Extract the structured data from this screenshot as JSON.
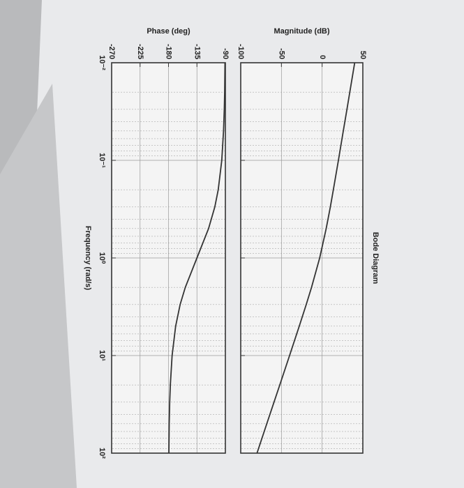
{
  "chart_data": [
    {
      "type": "line",
      "title": "Bode Diagram",
      "ylabel": "Magnitude (dB)",
      "x": [
        0.01,
        0.02,
        0.03,
        0.05,
        0.1,
        0.2,
        0.3,
        0.5,
        1,
        2,
        3,
        5,
        10,
        20,
        30,
        50,
        100
      ],
      "values": [
        40,
        34,
        30.5,
        26,
        20,
        13.8,
        10.1,
        5,
        -3,
        -13,
        -19.5,
        -28.1,
        -40,
        -52,
        -59.1,
        -68,
        -80
      ],
      "xlim": [
        0.01,
        100
      ],
      "xticks": [
        0.01,
        0.1,
        1,
        10,
        100
      ],
      "log_x": true,
      "ylim": [
        -100,
        50
      ],
      "yticks": [
        -100,
        -50,
        0,
        50
      ],
      "grid": true,
      "color": "#333333"
    },
    {
      "type": "line",
      "ylabel": "Phase (deg)",
      "xlabel": "Frequency  (rad/s)",
      "x": [
        0.01,
        0.02,
        0.03,
        0.05,
        0.1,
        0.2,
        0.3,
        0.5,
        1,
        2,
        3,
        5,
        10,
        20,
        30,
        50,
        100
      ],
      "values": [
        -90.6,
        -91.1,
        -91.7,
        -92.9,
        -95.7,
        -101.3,
        -106.7,
        -116.6,
        -135,
        -153.4,
        -161.6,
        -168.7,
        -174.3,
        -177.1,
        -178.1,
        -178.9,
        -179.4
      ],
      "xlim": [
        0.01,
        100
      ],
      "xticks": [
        {
          "value": 0.01,
          "label": "10⁻²"
        },
        {
          "value": 0.1,
          "label": "10⁻¹"
        },
        {
          "value": 1,
          "label": "10⁰"
        },
        {
          "value": 10,
          "label": "10¹"
        },
        {
          "value": 100,
          "label": "10²"
        }
      ],
      "log_x": true,
      "ylim": [
        -270,
        -90
      ],
      "yticks": [
        -270,
        -225,
        -180,
        -135,
        -90
      ],
      "grid": true,
      "color": "#333333"
    }
  ]
}
